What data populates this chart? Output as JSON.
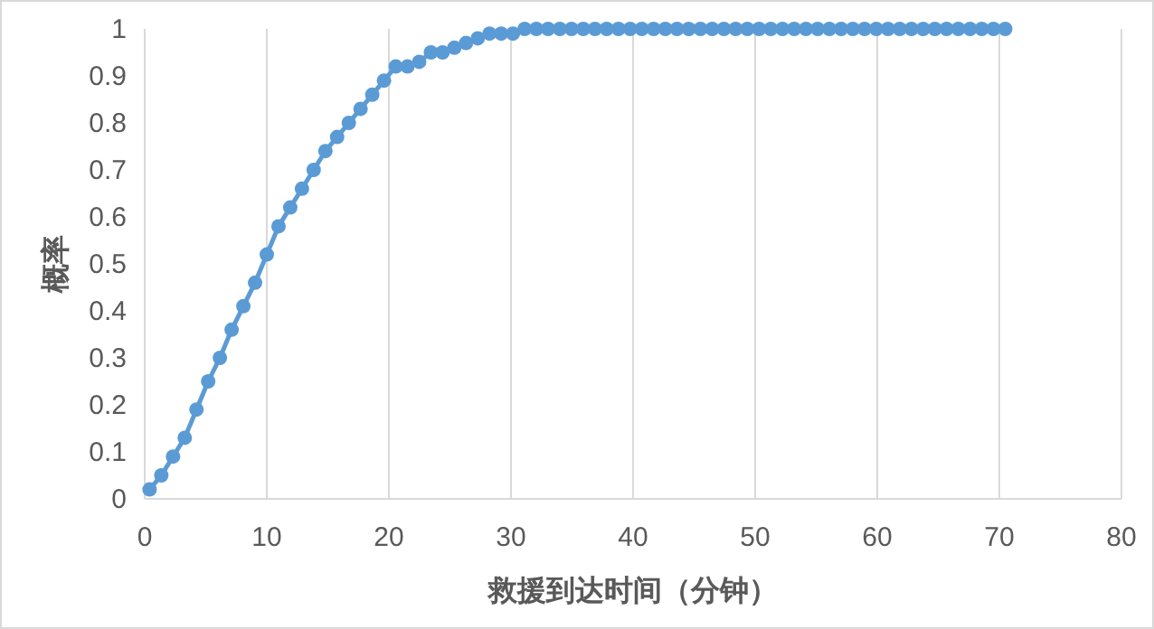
{
  "chart_data": {
    "type": "line",
    "xlabel": "救援到达时间（分钟）",
    "ylabel": "概率",
    "x": [
      0.4,
      1.36,
      2.32,
      3.28,
      4.24,
      5.2,
      6.16,
      7.12,
      8.08,
      9.04,
      10.0,
      10.96,
      11.92,
      12.88,
      13.84,
      14.8,
      15.76,
      16.72,
      17.68,
      18.64,
      19.6,
      20.56,
      21.52,
      22.48,
      23.44,
      24.4,
      25.36,
      26.32,
      27.28,
      28.24,
      29.2,
      30.16,
      31.12,
      32.08,
      33.04,
      34.0,
      34.96,
      35.92,
      36.88,
      37.84,
      38.8,
      39.76,
      40.72,
      41.68,
      42.64,
      43.6,
      44.56,
      45.52,
      46.48,
      47.44,
      48.4,
      49.36,
      50.32,
      51.28,
      52.24,
      53.2,
      54.16,
      55.12,
      56.08,
      57.04,
      58.0,
      58.96,
      59.92,
      60.88,
      61.84,
      62.8,
      63.76,
      64.72,
      65.68,
      66.64,
      67.6,
      68.56,
      69.52,
      70.48
    ],
    "series": [
      {
        "color": "#5b9bd5",
        "values": [
          0.02,
          0.05,
          0.09,
          0.13,
          0.19,
          0.25,
          0.3,
          0.36,
          0.41,
          0.46,
          0.52,
          0.58,
          0.62,
          0.66,
          0.7,
          0.74,
          0.77,
          0.8,
          0.83,
          0.86,
          0.89,
          0.92,
          0.92,
          0.93,
          0.95,
          0.95,
          0.96,
          0.97,
          0.98,
          0.99,
          0.99,
          0.99,
          1.0,
          1,
          1,
          1,
          1,
          1,
          1,
          1,
          1,
          1,
          1,
          1,
          1,
          1,
          1,
          1,
          1,
          1,
          1,
          1,
          1,
          1,
          1,
          1,
          1,
          1,
          1,
          1,
          1,
          1,
          1,
          1,
          1,
          1,
          1,
          1,
          1,
          1,
          1,
          1,
          1,
          1
        ]
      }
    ],
    "xlim": [
      0,
      80
    ],
    "xticks": [
      0,
      10,
      20,
      30,
      40,
      50,
      60,
      70,
      80
    ],
    "ylim": [
      0,
      1
    ],
    "yticks": [
      0,
      0.1,
      0.2,
      0.3,
      0.4,
      0.5,
      0.6,
      0.7,
      0.8,
      0.9,
      1
    ],
    "grid": "x",
    "marker": "circle",
    "line_style": "solid"
  }
}
